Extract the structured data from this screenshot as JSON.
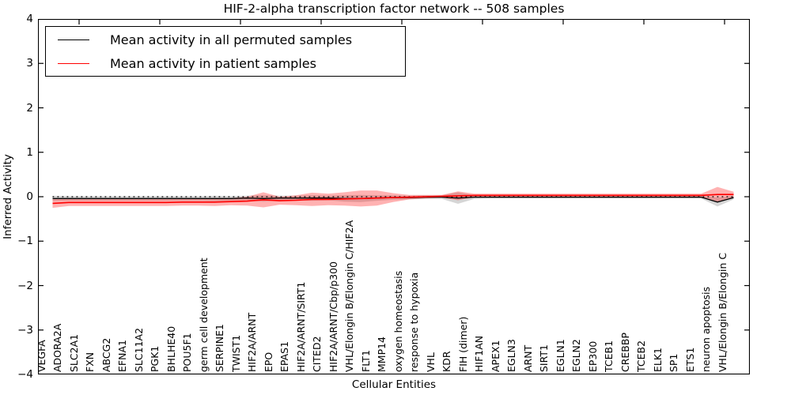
{
  "figure": {
    "title": "HIF-2-alpha transcription factor network -- 508 samples",
    "xlabel": "Cellular Entities",
    "ylabel": "Inferred Activity"
  },
  "legend": {
    "items": [
      {
        "label": "Mean activity in all permuted samples",
        "color": "#000000"
      },
      {
        "label": "Mean activity in patient samples",
        "color": "#ff0000"
      }
    ]
  },
  "chart_data": {
    "type": "line",
    "title": "HIF-2-alpha transcription factor network -- 508 samples",
    "xlabel": "Cellular Entities",
    "ylabel": "Inferred Activity",
    "ylim": [
      -4,
      4
    ],
    "ytick_labels": [
      "4",
      "3",
      "2",
      "1",
      "0",
      "−1",
      "−2",
      "−3",
      "−4"
    ],
    "ytick_values": [
      4,
      3,
      2,
      1,
      0,
      -1,
      -2,
      -3,
      -4
    ],
    "grid": false,
    "legend_position": "upper left",
    "zero_line": {
      "y": 0,
      "style": "dotted",
      "color": "#000000"
    },
    "categories": [
      "VEGFA",
      "ADORA2A",
      "SLC2A1",
      "FXN",
      "ABCG2",
      "EFNA1",
      "SLC11A2",
      "PGK1",
      "BHLHE40",
      "POU5F1",
      "germ cell development",
      "SERPINE1",
      "TWIST1",
      "HIF2A/ARNT",
      "EPO",
      "EPAS1",
      "HIF2A/ARNT/SIRT1",
      "CITED2",
      "HIF2A/ARNT/Cbp/p300",
      "VHL/Elongin B/Elongin C/HIF2A",
      "FLT1",
      "MMP14",
      "oxygen homeostasis",
      "response to hypoxia",
      "VHL",
      "KDR",
      "FIH (dimer)",
      "HIF1AN",
      "APEX1",
      "EGLN3",
      "ARNT",
      "SIRT1",
      "EGLN1",
      "EGLN2",
      "EP300",
      "TCEB1",
      "CREBBP",
      "TCEB2",
      "ELK1",
      "SP1",
      "ETS1",
      "neuron apoptosis",
      "VHL/Elongin B/Elongin C"
    ],
    "series": [
      {
        "name": "Mean activity in all permuted samples",
        "color": "#000000",
        "line_width": 1.3,
        "band_color": "#000000",
        "band_opacity": 0.16,
        "values": [
          -0.04,
          -0.04,
          -0.04,
          -0.04,
          -0.04,
          -0.04,
          -0.04,
          -0.04,
          -0.04,
          -0.04,
          -0.04,
          -0.04,
          -0.03,
          -0.04,
          -0.03,
          -0.03,
          -0.03,
          -0.03,
          -0.04,
          -0.04,
          -0.03,
          -0.02,
          -0.02,
          -0.01,
          -0.01,
          -0.03,
          -0.01,
          -0.01,
          -0.01,
          -0.01,
          -0.01,
          -0.01,
          -0.01,
          -0.01,
          -0.01,
          -0.01,
          -0.01,
          -0.01,
          -0.01,
          -0.01,
          -0.01,
          -0.12,
          -0.02
        ],
        "band_halfwidth": [
          0.06,
          0.05,
          0.05,
          0.05,
          0.05,
          0.05,
          0.05,
          0.05,
          0.05,
          0.05,
          0.06,
          0.05,
          0.05,
          0.07,
          0.05,
          0.05,
          0.06,
          0.05,
          0.07,
          0.08,
          0.06,
          0.05,
          0.04,
          0.04,
          0.04,
          0.13,
          0.04,
          0.03,
          0.03,
          0.03,
          0.03,
          0.03,
          0.03,
          0.03,
          0.03,
          0.03,
          0.03,
          0.03,
          0.03,
          0.03,
          0.03,
          0.1,
          0.04
        ]
      },
      {
        "name": "Mean activity in patient samples",
        "color": "#ff0000",
        "line_width": 1.6,
        "band_color": "#ff0000",
        "band_opacity": 0.3,
        "values": [
          -0.15,
          -0.13,
          -0.13,
          -0.13,
          -0.13,
          -0.13,
          -0.13,
          -0.13,
          -0.12,
          -0.12,
          -0.12,
          -0.11,
          -0.1,
          -0.07,
          -0.09,
          -0.08,
          -0.06,
          -0.06,
          -0.05,
          -0.04,
          -0.03,
          -0.02,
          -0.01,
          0.0,
          0.01,
          0.02,
          0.03,
          0.03,
          0.03,
          0.03,
          0.03,
          0.03,
          0.03,
          0.03,
          0.03,
          0.03,
          0.03,
          0.03,
          0.03,
          0.03,
          0.03,
          0.05,
          0.05
        ],
        "band_halfwidth": [
          0.1,
          0.08,
          0.08,
          0.08,
          0.08,
          0.08,
          0.08,
          0.08,
          0.08,
          0.08,
          0.09,
          0.08,
          0.1,
          0.17,
          0.09,
          0.11,
          0.15,
          0.13,
          0.15,
          0.18,
          0.17,
          0.1,
          0.05,
          0.04,
          0.03,
          0.1,
          0.04,
          0.04,
          0.04,
          0.04,
          0.04,
          0.04,
          0.04,
          0.04,
          0.04,
          0.04,
          0.04,
          0.04,
          0.04,
          0.04,
          0.04,
          0.17,
          0.06
        ]
      }
    ]
  }
}
